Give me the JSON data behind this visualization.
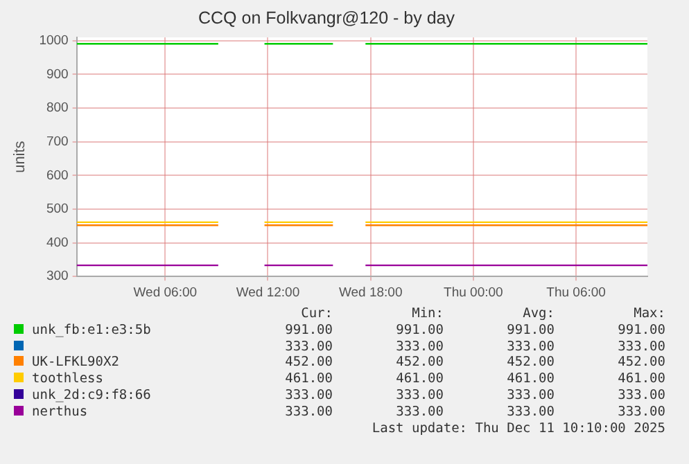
{
  "chart_data": {
    "type": "line",
    "title": "CCQ on Folkvangr@120 - by day",
    "ylabel": "units",
    "xlim": [
      "2025-12-10T00:50",
      "2025-12-11T10:10"
    ],
    "xticks": [
      {
        "value": "2025-12-10T06:00",
        "label": "Wed 06:00"
      },
      {
        "value": "2025-12-10T12:00",
        "label": "Wed 12:00"
      },
      {
        "value": "2025-12-10T18:00",
        "label": "Wed 18:00"
      },
      {
        "value": "2025-12-11T00:00",
        "label": "Thu 00:00"
      },
      {
        "value": "2025-12-11T06:00",
        "label": "Thu 06:00"
      }
    ],
    "x": [
      "2025-12-10T00:50",
      "2025-12-10T09:06",
      "2025-12-10T10:24",
      "2025-12-10T11:48",
      "2025-12-10T15:48",
      "2025-12-10T16:42",
      "2025-12-10T17:42",
      "2025-12-11T10:10"
    ],
    "ylim": [
      300,
      1010
    ],
    "yticks": [
      300,
      400,
      500,
      600,
      700,
      800,
      900,
      1000
    ],
    "grid": true,
    "legend": "bottom",
    "marker": "none",
    "line_style": "solid",
    "series": [
      {
        "name": "unk_fb:e1:e3:5b",
        "color": "#00cc00",
        "values": [
          991,
          991,
          null,
          991,
          991,
          null,
          991,
          991
        ]
      },
      {
        "color": "#0066b3",
        "values": [
          null,
          null,
          null,
          null,
          null,
          null,
          null,
          null
        ]
      },
      {
        "name": "UK-LFKL90X2",
        "color": "#ff8000",
        "values": [
          452,
          452,
          null,
          452,
          452,
          null,
          452,
          452
        ]
      },
      {
        "name": "toothless",
        "color": "#ffcc00",
        "values": [
          461,
          461,
          null,
          461,
          461,
          null,
          461,
          461
        ]
      },
      {
        "name": "unk_2d:c9:f8:66",
        "color": "#330099",
        "values": [
          null,
          null,
          null,
          null,
          null,
          null,
          null,
          null
        ]
      },
      {
        "name": "nerthus",
        "color": "#990099",
        "values": [
          333,
          333,
          null,
          333,
          333,
          null,
          333,
          333
        ]
      }
    ],
    "annotations": [
      "Cur:",
      "Min:",
      "Avg:",
      "Max:",
      "991.00",
      "991.00",
      "991.00",
      "991.00",
      "333.00",
      "333.00",
      "333.00",
      "333.00",
      "452.00",
      "452.00",
      "452.00",
      "452.00",
      "461.00",
      "461.00",
      "461.00",
      "461.00",
      "333.00",
      "333.00",
      "333.00",
      "333.00",
      "333.00",
      "333.00",
      "333.00",
      "333.00",
      "Last update: Thu Dec 11 10:10:00 2025"
    ]
  }
}
